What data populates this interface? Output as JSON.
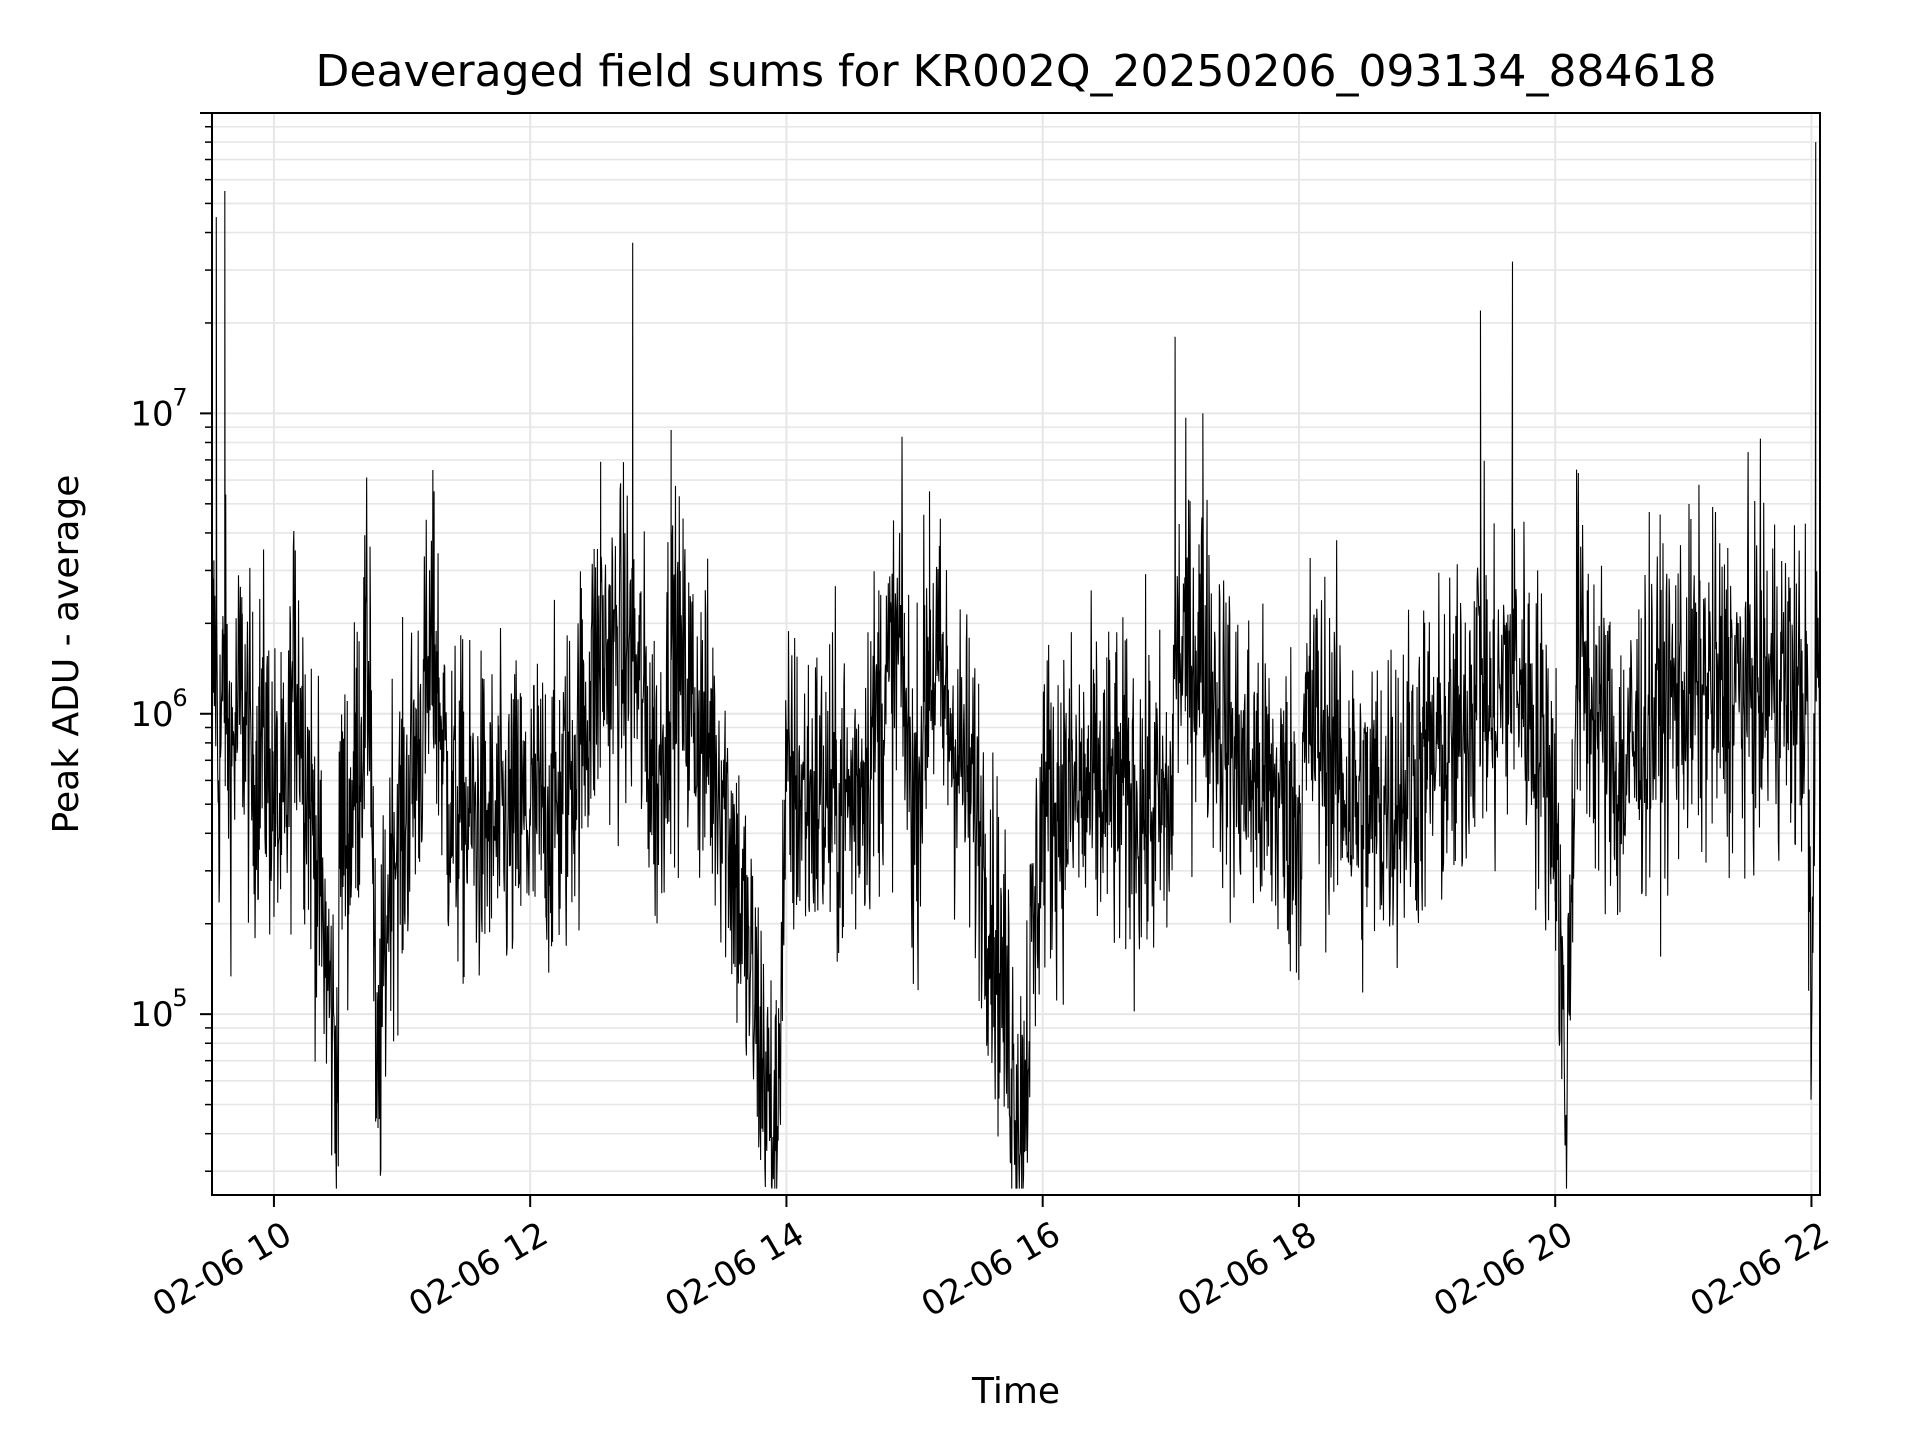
{
  "chart_data": {
    "type": "line",
    "title": "Deaveraged field sums for KR002Q_20250206_093134_884618",
    "xlabel": "Time",
    "ylabel": "Peak ADU - average",
    "yscale": "log",
    "ylim": [
      25000,
      100000000
    ],
    "xlim": [
      "2025-02-06 09:31",
      "2025-02-06 22:04"
    ],
    "x_ticks": [
      "02-06 10",
      "02-06 12",
      "02-06 14",
      "02-06 16",
      "02-06 18",
      "02-06 20",
      "02-06 22"
    ],
    "y_ticks": [
      {
        "base": "10",
        "exp": "5",
        "value": 100000
      },
      {
        "base": "10",
        "exp": "6",
        "value": 1000000
      },
      {
        "base": "10",
        "exp": "7",
        "value": 10000000
      }
    ],
    "grid": true,
    "line_color": "#000000",
    "series": [
      {
        "x": [
          "2025-02-06 09:31",
          "2025-02-06 09:33",
          "2025-02-06 09:34",
          "2025-02-06 09:36",
          "2025-02-06 09:37",
          "2025-02-06 09:38",
          "2025-02-06 09:40",
          "2025-02-06 09:45",
          "2025-02-06 09:50",
          "2025-02-06 09:55",
          "2025-02-06 10:00",
          "2025-02-06 10:05",
          "2025-02-06 10:10",
          "2025-02-06 10:18",
          "2025-02-06 10:30",
          "2025-02-06 10:31",
          "2025-02-06 10:35",
          "2025-02-06 10:45",
          "2025-02-06 10:48",
          "2025-02-06 10:55",
          "2025-02-06 11:00",
          "2025-02-06 11:15",
          "2025-02-06 11:22",
          "2025-02-06 11:30",
          "2025-02-06 11:45",
          "2025-02-06 12:00",
          "2025-02-06 12:15",
          "2025-02-06 12:33",
          "2025-02-06 12:48",
          "2025-02-06 13:00",
          "2025-02-06 13:06",
          "2025-02-06 13:30",
          "2025-02-06 13:55",
          "2025-02-06 14:00",
          "2025-02-06 14:30",
          "2025-02-06 14:53",
          "2025-02-06 15:00",
          "2025-02-06 15:07",
          "2025-02-06 15:30",
          "2025-02-06 15:50",
          "2025-02-06 16:00",
          "2025-02-06 16:30",
          "2025-02-06 17:00",
          "2025-02-06 17:02",
          "2025-02-06 17:15",
          "2025-02-06 17:30",
          "2025-02-06 18:00",
          "2025-02-06 18:05",
          "2025-02-06 18:27",
          "2025-02-06 18:30",
          "2025-02-06 19:00",
          "2025-02-06 19:15",
          "2025-02-06 19:25",
          "2025-02-06 19:30",
          "2025-02-06 19:40",
          "2025-02-06 20:00",
          "2025-02-06 20:05",
          "2025-02-06 20:10",
          "2025-02-06 20:30",
          "2025-02-06 20:45",
          "2025-02-06 21:00",
          "2025-02-06 21:30",
          "2025-02-06 21:45",
          "2025-02-06 21:58",
          "2025-02-06 22:00",
          "2025-02-06 22:02",
          "2025-02-06 22:04"
        ],
        "y": [
          1400000,
          45000000,
          600000,
          1100000,
          55000000,
          900000,
          700000,
          1200000,
          600000,
          900000,
          500000,
          400000,
          3500000,
          450000,
          60000,
          450000,
          400000,
          3600000,
          45000,
          400000,
          400000,
          5500000,
          500000,
          450000,
          400000,
          450000,
          500000,
          6900000,
          37000000,
          550000,
          8800000,
          600000,
          35000,
          550000,
          500000,
          4000000,
          450000,
          5500000,
          450000,
          45000,
          500000,
          550000,
          450000,
          18000000,
          10000000,
          700000,
          450000,
          1000000,
          500000,
          450000,
          700000,
          800000,
          22000000,
          900000,
          32000000,
          550000,
          45000,
          6500000,
          600000,
          1000000,
          1200000,
          1200000,
          1300000,
          1100000,
          70000,
          80000000,
          1500000
        ]
      }
    ]
  }
}
